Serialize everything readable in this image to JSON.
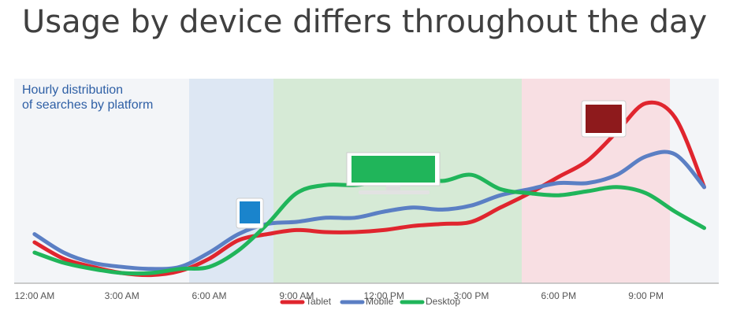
{
  "chart_data": {
    "type": "line",
    "title": "Usage by device differs throughout the day",
    "annotation": [
      "Hourly distribution",
      "of searches by platform"
    ],
    "x": [
      0,
      1,
      2,
      3,
      4,
      5,
      6,
      7,
      8,
      9,
      10,
      11,
      12,
      13,
      14,
      15,
      16,
      17,
      18,
      19,
      20,
      21,
      22,
      23
    ],
    "xlim": [
      -0.7,
      23.5
    ],
    "xticks": [
      {
        "value": 0,
        "label": "12:00 AM"
      },
      {
        "value": 3,
        "label": "3:00 AM"
      },
      {
        "value": 6,
        "label": "6:00 AM"
      },
      {
        "value": 9,
        "label": "9:00 AM"
      },
      {
        "value": 12,
        "label": "12:00 PM"
      },
      {
        "value": 15,
        "label": "3:00 PM"
      },
      {
        "value": 18,
        "label": "6:00 PM"
      },
      {
        "value": 21,
        "label": "9:00 PM"
      }
    ],
    "ylim": [
      0,
      100
    ],
    "series": [
      {
        "name": "Tablet",
        "color": "#e0252e",
        "values": [
          20,
          12,
          8,
          5,
          4,
          6,
          12,
          21,
          24,
          26,
          25,
          25,
          26,
          28,
          29,
          30,
          37,
          44,
          52,
          60,
          74,
          88,
          81,
          47
        ]
      },
      {
        "name": "Mobile",
        "color": "#5b7fc4",
        "values": [
          24,
          15,
          10,
          8,
          7,
          8,
          15,
          24,
          29,
          30,
          32,
          32,
          35,
          37,
          36,
          38,
          43,
          46,
          49,
          49,
          53,
          62,
          63,
          47
        ]
      },
      {
        "name": "Desktop",
        "color": "#20b55a",
        "values": [
          15,
          10,
          7,
          5,
          5,
          7,
          8,
          16,
          29,
          44,
          48,
          48,
          50,
          53,
          50,
          53,
          46,
          44,
          43,
          45,
          47,
          44,
          35,
          27
        ]
      }
    ]
  }
}
